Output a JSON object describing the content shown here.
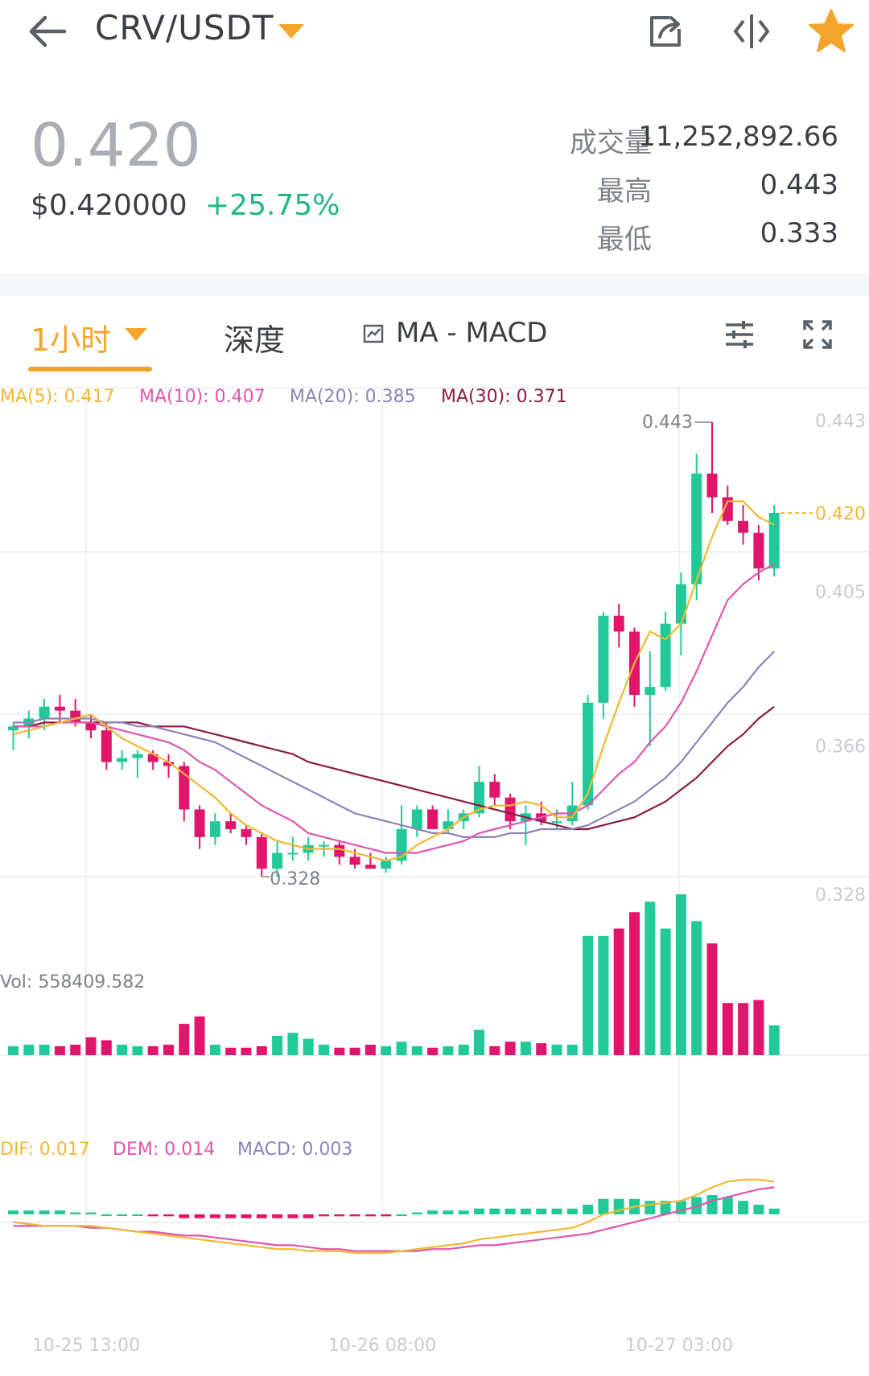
{
  "header": {
    "pair": "CRV/USDT"
  },
  "summary": {
    "last_price": "0.420",
    "fiat_price": "$0.420000",
    "change": "+25.75%",
    "volume_label": "成交量",
    "volume_value": "11,252,892.66",
    "high_label": "最高",
    "high_value": "0.443",
    "low_label": "最低",
    "low_value": "0.333"
  },
  "tabs": {
    "interval": "1小时",
    "depth": "深度",
    "indicator": "MA - MACD"
  },
  "ma_legend": {
    "ma5": "MA(5): 0.417",
    "ma10": "MA(10): 0.407",
    "ma20": "MA(20): 0.385",
    "ma30": "MA(30): 0.371"
  },
  "volume_legend": "Vol: 558409.582",
  "macd_legend": {
    "dif": "DIF: 0.017",
    "dem": "DEM: 0.014",
    "macd": "MACD: 0.003"
  },
  "colors": {
    "up": "#20c997",
    "down": "#e0156b",
    "ma5": "#f0b830",
    "ma10": "#e056b0",
    "ma20": "#8f82b8",
    "ma30": "#8a1c44"
  },
  "chart_data": {
    "type": "candlestick",
    "price_axis_ticks": [
      "0.443",
      "0.405",
      "0.366",
      "0.328"
    ],
    "current_price_label": "0.420",
    "max_label": "0.443",
    "min_label": "0.328",
    "time_labels": [
      "10-25 13:00",
      "10-26 08:00",
      "10-27 03:00"
    ],
    "ohlc": [
      [
        0.365,
        0.367,
        0.36,
        0.366
      ],
      [
        0.366,
        0.37,
        0.363,
        0.368
      ],
      [
        0.368,
        0.373,
        0.365,
        0.371
      ],
      [
        0.371,
        0.374,
        0.367,
        0.37
      ],
      [
        0.37,
        0.373,
        0.366,
        0.367
      ],
      [
        0.367,
        0.369,
        0.363,
        0.365
      ],
      [
        0.365,
        0.367,
        0.355,
        0.357
      ],
      [
        0.357,
        0.36,
        0.355,
        0.358
      ],
      [
        0.358,
        0.36,
        0.353,
        0.359
      ],
      [
        0.359,
        0.36,
        0.355,
        0.357
      ],
      [
        0.357,
        0.359,
        0.353,
        0.356
      ],
      [
        0.356,
        0.357,
        0.342,
        0.345
      ],
      [
        0.345,
        0.346,
        0.335,
        0.338
      ],
      [
        0.338,
        0.344,
        0.336,
        0.342
      ],
      [
        0.342,
        0.344,
        0.339,
        0.34
      ],
      [
        0.34,
        0.341,
        0.336,
        0.338
      ],
      [
        0.338,
        0.339,
        0.328,
        0.33
      ],
      [
        0.33,
        0.337,
        0.328,
        0.334
      ],
      [
        0.334,
        0.338,
        0.332,
        0.334
      ],
      [
        0.334,
        0.338,
        0.332,
        0.336
      ],
      [
        0.336,
        0.337,
        0.333,
        0.336
      ],
      [
        0.336,
        0.337,
        0.331,
        0.333
      ],
      [
        0.333,
        0.335,
        0.33,
        0.331
      ],
      [
        0.331,
        0.334,
        0.33,
        0.33
      ],
      [
        0.33,
        0.333,
        0.329,
        0.332
      ],
      [
        0.332,
        0.346,
        0.331,
        0.34
      ],
      [
        0.34,
        0.346,
        0.338,
        0.345
      ],
      [
        0.345,
        0.346,
        0.34,
        0.34
      ],
      [
        0.34,
        0.345,
        0.339,
        0.342
      ],
      [
        0.342,
        0.345,
        0.34,
        0.344
      ],
      [
        0.344,
        0.356,
        0.343,
        0.352
      ],
      [
        0.352,
        0.354,
        0.346,
        0.348
      ],
      [
        0.348,
        0.349,
        0.34,
        0.342
      ],
      [
        0.342,
        0.346,
        0.336,
        0.344
      ],
      [
        0.344,
        0.347,
        0.341,
        0.342
      ],
      [
        0.342,
        0.345,
        0.34,
        0.342
      ],
      [
        0.342,
        0.352,
        0.341,
        0.346
      ],
      [
        0.346,
        0.374,
        0.345,
        0.372
      ],
      [
        0.372,
        0.395,
        0.368,
        0.394
      ],
      [
        0.394,
        0.397,
        0.386,
        0.39
      ],
      [
        0.39,
        0.391,
        0.371,
        0.374
      ],
      [
        0.374,
        0.385,
        0.361,
        0.376
      ],
      [
        0.376,
        0.395,
        0.375,
        0.392
      ],
      [
        0.392,
        0.405,
        0.384,
        0.402
      ],
      [
        0.402,
        0.435,
        0.398,
        0.43
      ],
      [
        0.43,
        0.443,
        0.42,
        0.424
      ],
      [
        0.424,
        0.427,
        0.417,
        0.418
      ],
      [
        0.418,
        0.422,
        0.412,
        0.415
      ],
      [
        0.415,
        0.417,
        0.403,
        0.406
      ],
      [
        0.406,
        0.422,
        0.404,
        0.42
      ]
    ],
    "ma5": [
      0.364,
      0.365,
      0.366,
      0.367,
      0.368,
      0.369,
      0.366,
      0.363,
      0.361,
      0.359,
      0.357,
      0.354,
      0.351,
      0.348,
      0.344,
      0.341,
      0.339,
      0.337,
      0.336,
      0.335,
      0.335,
      0.335,
      0.334,
      0.333,
      0.332,
      0.333,
      0.336,
      0.338,
      0.34,
      0.343,
      0.345,
      0.346,
      0.346,
      0.347,
      0.346,
      0.343,
      0.343,
      0.349,
      0.361,
      0.372,
      0.382,
      0.39,
      0.388,
      0.392,
      0.403,
      0.414,
      0.423,
      0.423,
      0.419,
      0.417
    ],
    "ma10": [
      0.366,
      0.366,
      0.366,
      0.367,
      0.367,
      0.367,
      0.366,
      0.365,
      0.364,
      0.363,
      0.362,
      0.36,
      0.357,
      0.355,
      0.352,
      0.349,
      0.346,
      0.344,
      0.342,
      0.339,
      0.338,
      0.337,
      0.336,
      0.335,
      0.334,
      0.334,
      0.334,
      0.335,
      0.336,
      0.337,
      0.339,
      0.34,
      0.341,
      0.342,
      0.343,
      0.344,
      0.344,
      0.346,
      0.35,
      0.354,
      0.357,
      0.362,
      0.366,
      0.372,
      0.38,
      0.389,
      0.398,
      0.402,
      0.405,
      0.407
    ],
    "ma20": [
      0.367,
      0.367,
      0.368,
      0.368,
      0.368,
      0.368,
      0.367,
      0.367,
      0.366,
      0.366,
      0.365,
      0.364,
      0.363,
      0.362,
      0.36,
      0.358,
      0.356,
      0.354,
      0.352,
      0.35,
      0.348,
      0.346,
      0.344,
      0.343,
      0.342,
      0.341,
      0.34,
      0.339,
      0.339,
      0.338,
      0.338,
      0.338,
      0.339,
      0.339,
      0.34,
      0.34,
      0.34,
      0.341,
      0.343,
      0.345,
      0.347,
      0.35,
      0.353,
      0.357,
      0.362,
      0.367,
      0.372,
      0.376,
      0.381,
      0.385
    ],
    "ma30": [
      0.366,
      0.366,
      0.367,
      0.367,
      0.367,
      0.367,
      0.367,
      0.367,
      0.367,
      0.366,
      0.366,
      0.366,
      0.365,
      0.364,
      0.363,
      0.362,
      0.361,
      0.36,
      0.359,
      0.357,
      0.356,
      0.355,
      0.354,
      0.353,
      0.352,
      0.351,
      0.35,
      0.349,
      0.348,
      0.347,
      0.346,
      0.345,
      0.344,
      0.343,
      0.342,
      0.341,
      0.34,
      0.34,
      0.341,
      0.342,
      0.343,
      0.345,
      0.347,
      0.35,
      0.353,
      0.357,
      0.361,
      0.364,
      0.368,
      0.371
    ],
    "volume": [
      6,
      7,
      7,
      6,
      7,
      12,
      10,
      7,
      6,
      6,
      7,
      21,
      26,
      7,
      5,
      5,
      6,
      13,
      15,
      11,
      7,
      5,
      5,
      7,
      6,
      9,
      6,
      5,
      6,
      7,
      17,
      6,
      9,
      9,
      8,
      7,
      7,
      80,
      80,
      85,
      96,
      103,
      85,
      108,
      90,
      75,
      35,
      35,
      37,
      20
    ],
    "dif": [
      -0.004,
      -0.005,
      -0.006,
      -0.006,
      -0.006,
      -0.006,
      -0.007,
      -0.008,
      -0.009,
      -0.01,
      -0.011,
      -0.012,
      -0.013,
      -0.014,
      -0.015,
      -0.016,
      -0.017,
      -0.018,
      -0.018,
      -0.019,
      -0.019,
      -0.019,
      -0.02,
      -0.02,
      -0.02,
      -0.019,
      -0.018,
      -0.017,
      -0.016,
      -0.015,
      -0.013,
      -0.012,
      -0.011,
      -0.01,
      -0.009,
      -0.008,
      -0.007,
      -0.004,
      0.0,
      0.002,
      0.004,
      0.005,
      0.006,
      0.007,
      0.01,
      0.014,
      0.017,
      0.018,
      0.018,
      0.017
    ],
    "dem": [
      -0.006,
      -0.006,
      -0.006,
      -0.006,
      -0.006,
      -0.007,
      -0.007,
      -0.008,
      -0.009,
      -0.009,
      -0.01,
      -0.011,
      -0.011,
      -0.012,
      -0.013,
      -0.014,
      -0.015,
      -0.016,
      -0.016,
      -0.017,
      -0.018,
      -0.018,
      -0.019,
      -0.019,
      -0.019,
      -0.019,
      -0.019,
      -0.018,
      -0.018,
      -0.017,
      -0.016,
      -0.016,
      -0.015,
      -0.014,
      -0.013,
      -0.012,
      -0.011,
      -0.01,
      -0.008,
      -0.006,
      -0.004,
      -0.002,
      0.0,
      0.002,
      0.004,
      0.007,
      0.009,
      0.011,
      0.013,
      0.014
    ],
    "macd_hist": [
      0.002,
      0.002,
      0.002,
      0.002,
      0.001,
      0.001,
      0.0,
      0.0,
      0.0,
      -0.001,
      -0.001,
      -0.002,
      -0.002,
      -0.002,
      -0.002,
      -0.002,
      -0.002,
      -0.002,
      -0.002,
      -0.002,
      -0.001,
      -0.001,
      -0.001,
      -0.001,
      -0.001,
      0.0,
      0.001,
      0.002,
      0.002,
      0.002,
      0.003,
      0.003,
      0.003,
      0.003,
      0.003,
      0.003,
      0.003,
      0.005,
      0.008,
      0.008,
      0.008,
      0.007,
      0.007,
      0.007,
      0.009,
      0.01,
      0.009,
      0.007,
      0.005,
      0.003
    ]
  }
}
